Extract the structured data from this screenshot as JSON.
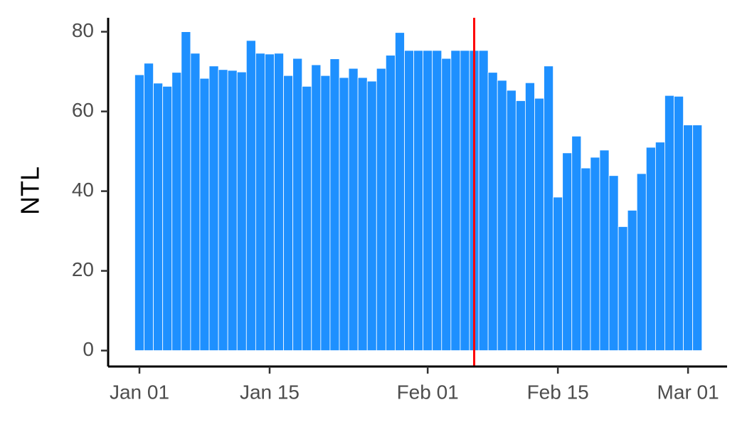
{
  "chart_data": {
    "type": "bar",
    "ylabel": "NTL",
    "categories": [
      "Jan 01",
      null,
      null,
      null,
      null,
      null,
      null,
      null,
      null,
      null,
      null,
      null,
      null,
      null,
      "Jan 15",
      null,
      null,
      null,
      null,
      null,
      null,
      null,
      null,
      null,
      null,
      null,
      null,
      null,
      null,
      null,
      null,
      "Feb 01",
      null,
      null,
      null,
      null,
      null,
      null,
      null,
      null,
      null,
      null,
      null,
      null,
      null,
      "Feb 15",
      null,
      null,
      null,
      null,
      null,
      null,
      null,
      null,
      null,
      null,
      null,
      null,
      null,
      "Mar 01",
      null
    ],
    "values": [
      69.2,
      72.1,
      67.1,
      66.3,
      69.8,
      80,
      74.6,
      68.3,
      71.4,
      70.5,
      70.3,
      69.9,
      77.8,
      74.6,
      74.4,
      74.6,
      69,
      73.3,
      66.3,
      71.7,
      69,
      73.2,
      68.5,
      70.8,
      68.5,
      67.6,
      70.8,
      74.1,
      79.8,
      75.3,
      75.3,
      75.3,
      75.3,
      73.3,
      75.3,
      75.3,
      75.3,
      75.3,
      69.8,
      67.8,
      65.3,
      62.7,
      67.2,
      63.3,
      71.4,
      38.5,
      49.6,
      53.8,
      45.8,
      48.5,
      50.3,
      43.9,
      31.1,
      35.2,
      44.4,
      51,
      52.3,
      64,
      63.8,
      56.6,
      56.6
    ],
    "color": "#1e90ff",
    "ylim": [
      -4,
      83.5
    ],
    "yticks": [
      0,
      20,
      40,
      60,
      80
    ],
    "vline": {
      "category_index": 36,
      "color": "#ff0000"
    }
  }
}
